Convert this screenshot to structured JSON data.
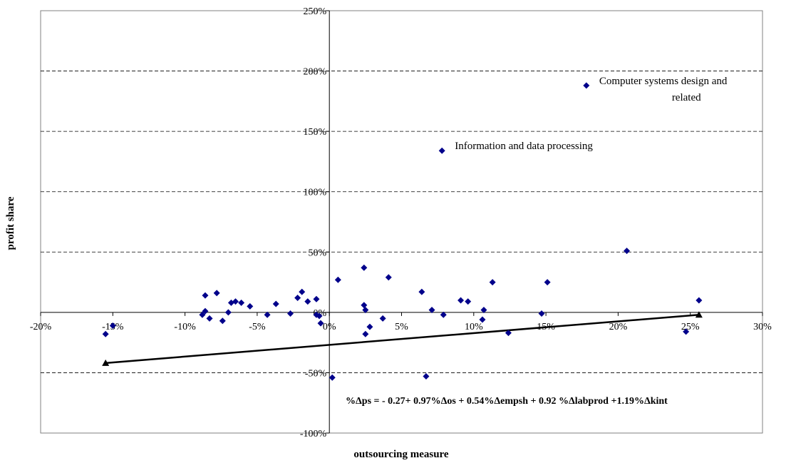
{
  "chart_data": {
    "type": "scatter",
    "xlabel": "outsourcing measure",
    "ylabel": "profit share",
    "xlim": [
      -0.2,
      0.3
    ],
    "ylim": [
      -1.0,
      2.5
    ],
    "x_ticks": [
      -0.2,
      -0.15,
      -0.1,
      -0.05,
      0.0,
      0.05,
      0.1,
      0.15,
      0.2,
      0.25,
      0.3
    ],
    "x_tick_labels": [
      "-20%",
      "-15%",
      "-10%",
      "-5%",
      "0%",
      "5%",
      "10%",
      "15%",
      "20%",
      "25%",
      "30%"
    ],
    "y_ticks": [
      -1.0,
      -0.5,
      0.0,
      0.5,
      1.0,
      1.5,
      2.0,
      2.5
    ],
    "y_tick_labels": [
      "-100%",
      "-50%",
      "0%",
      "50%",
      "100%",
      "150%",
      "200%",
      "250%"
    ],
    "grid": "horizontal dashed",
    "points": [
      {
        "x": -0.155,
        "y": -0.18
      },
      {
        "x": -0.15,
        "y": -0.11
      },
      {
        "x": -0.088,
        "y": -0.02
      },
      {
        "x": -0.086,
        "y": 0.14
      },
      {
        "x": -0.086,
        "y": 0.01
      },
      {
        "x": -0.083,
        "y": -0.05
      },
      {
        "x": -0.078,
        "y": 0.16
      },
      {
        "x": -0.074,
        "y": -0.07
      },
      {
        "x": -0.07,
        "y": 0.0
      },
      {
        "x": -0.068,
        "y": 0.08
      },
      {
        "x": -0.065,
        "y": 0.09
      },
      {
        "x": -0.061,
        "y": 0.08
      },
      {
        "x": -0.055,
        "y": 0.05
      },
      {
        "x": -0.043,
        "y": -0.02
      },
      {
        "x": -0.037,
        "y": 0.07
      },
      {
        "x": -0.027,
        "y": -0.01
      },
      {
        "x": -0.022,
        "y": 0.12
      },
      {
        "x": -0.019,
        "y": 0.17
      },
      {
        "x": -0.015,
        "y": 0.09
      },
      {
        "x": -0.009,
        "y": 0.11
      },
      {
        "x": -0.007,
        "y": -0.03
      },
      {
        "x": -0.006,
        "y": -0.09
      },
      {
        "x": -0.009,
        "y": -0.02
      },
      {
        "x": 0.002,
        "y": -0.54
      },
      {
        "x": 0.006,
        "y": 0.27
      },
      {
        "x": 0.024,
        "y": 0.37
      },
      {
        "x": 0.024,
        "y": 0.06
      },
      {
        "x": 0.025,
        "y": 0.02
      },
      {
        "x": 0.025,
        "y": -0.18
      },
      {
        "x": 0.028,
        "y": -0.12
      },
      {
        "x": 0.037,
        "y": -0.05
      },
      {
        "x": 0.041,
        "y": 0.29
      },
      {
        "x": 0.064,
        "y": 0.17
      },
      {
        "x": 0.067,
        "y": -0.53
      },
      {
        "x": 0.071,
        "y": 0.02
      },
      {
        "x": 0.079,
        "y": -0.02
      },
      {
        "x": 0.091,
        "y": 0.1
      },
      {
        "x": 0.096,
        "y": 0.09
      },
      {
        "x": 0.106,
        "y": -0.06
      },
      {
        "x": 0.107,
        "y": 0.02
      },
      {
        "x": 0.113,
        "y": 0.25
      },
      {
        "x": 0.124,
        "y": -0.17
      },
      {
        "x": 0.147,
        "y": -0.01
      },
      {
        "x": 0.151,
        "y": 0.25
      },
      {
        "x": 0.178,
        "y": 1.88
      },
      {
        "x": 0.078,
        "y": 1.34
      },
      {
        "x": 0.206,
        "y": 0.51
      },
      {
        "x": 0.247,
        "y": -0.16
      },
      {
        "x": 0.256,
        "y": 0.1
      }
    ],
    "trendline": {
      "x": [
        -0.155,
        0.256
      ],
      "y": [
        -0.42,
        -0.02
      ]
    },
    "annotations": [
      {
        "x": 0.178,
        "y": 1.88,
        "lines": [
          "Computer systems design and",
          "related"
        ]
      },
      {
        "x": 0.078,
        "y": 1.34,
        "lines": [
          "Information and data processing"
        ]
      }
    ],
    "equation": "%Δps =  - 0.27+ 0.97%Δos + 0.54%Δempsh + 0.92 %Δlabprod +1.19%Δkint",
    "colors": {
      "marker": "#00008B",
      "trendline": "#000000",
      "grid": "#000000"
    }
  }
}
